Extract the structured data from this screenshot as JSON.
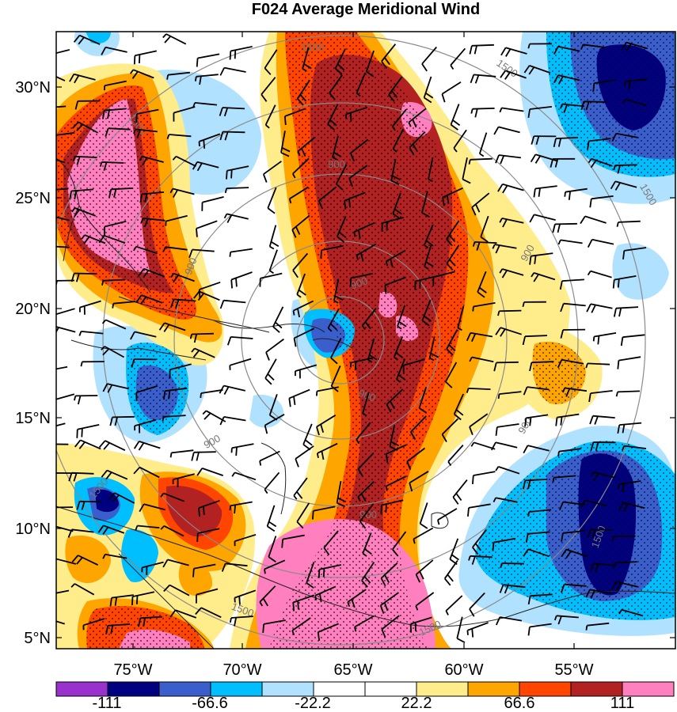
{
  "title": "F024 Average Meridional Wind",
  "map": {
    "lat_ticks": [
      "30°N",
      "25°N",
      "20°N",
      "15°N",
      "10°N",
      "5°N"
    ],
    "lon_ticks": [
      "75°W",
      "70°W",
      "65°W",
      "60°W",
      "55°W"
    ],
    "range_ring_labels": [
      "900",
      "1500"
    ],
    "colors": {
      "ring": "#8a8a8a",
      "coast": "#222222",
      "barb": "#000000"
    }
  },
  "colorbar": {
    "labels": [
      "-111",
      "-66.6",
      "-22.2",
      "22.2",
      "66.6",
      "111"
    ],
    "colors": [
      "#9932cc",
      "#000080",
      "#3a5fcd",
      "#00bfff",
      "#b0e2ff",
      "#ffffff",
      "#ffffff",
      "#ffec8b",
      "#ffa500",
      "#ff4500",
      "#b22222",
      "#ff7fbf"
    ]
  },
  "chart_data": {
    "type": "heatmap",
    "title": "F024 Average Meridional Wind",
    "x_ticks": [
      "75°W",
      "70°W",
      "65°W",
      "60°W",
      "55°W"
    ],
    "y_ticks": [
      "30°N",
      "25°N",
      "20°N",
      "15°N",
      "10°N",
      "5°N"
    ],
    "color_levels": [
      -111,
      -66.6,
      -22.2,
      22.2,
      66.6,
      111
    ],
    "overlays": [
      "wind barbs",
      "stippling",
      "range rings 300/600/900/1200/1500",
      "coastlines"
    ]
  }
}
